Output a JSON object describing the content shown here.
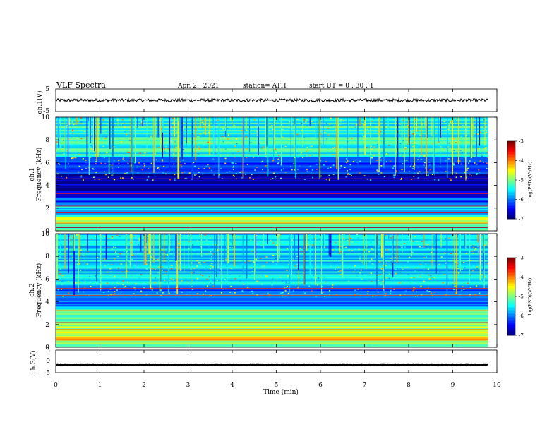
{
  "header": {
    "title": "VLF  Spectra",
    "date": "Apr. 2  , 2021",
    "station": "station= ATH",
    "start": "start  UT  =    0  : 30 : 1"
  },
  "chart_data": [
    {
      "type": "line",
      "id": "ch1-waveform",
      "ylabel": "ch.1(V)",
      "ylim": [
        -5,
        5
      ],
      "yticks": [
        "5",
        "-5"
      ],
      "xlim": [
        0,
        10
      ],
      "series": [
        {
          "baseline": 0,
          "amplitude": 0.7,
          "color": "#000000"
        }
      ]
    },
    {
      "type": "heatmap",
      "id": "ch1-spectrogram",
      "ylabel_line1": "ch.1",
      "ylabel_line2": "Frequency  (kHz)",
      "ylim": [
        0,
        10
      ],
      "yticks": [
        "0",
        "2",
        "4",
        "6",
        "8",
        "10"
      ],
      "xlim": [
        0,
        9.8
      ],
      "bands": [
        {
          "from": 0.0,
          "to": 0.4,
          "level": -5.4
        },
        {
          "from": 0.4,
          "to": 1.2,
          "level": -4.8
        },
        {
          "from": 1.2,
          "to": 2.4,
          "level": -5.6
        },
        {
          "from": 2.4,
          "to": 3.0,
          "level": -6.2
        },
        {
          "from": 3.0,
          "to": 5.0,
          "level": -6.8
        },
        {
          "from": 5.0,
          "to": 6.5,
          "level": -6.1
        },
        {
          "from": 6.5,
          "to": 10.0,
          "level": -5.4
        }
      ],
      "colorbar": {
        "label": "log(PSD)(V²/Hz)",
        "range": [
          -7,
          -3
        ],
        "ticks": [
          "-3",
          "-4",
          "-5",
          "-6",
          "-7"
        ]
      }
    },
    {
      "type": "heatmap",
      "id": "ch2-spectrogram",
      "ylabel_line1": "ch.2",
      "ylabel_line2": "Frequency  (kHz)",
      "ylim": [
        0,
        10
      ],
      "yticks": [
        "0",
        "2",
        "4",
        "6",
        "8",
        "10"
      ],
      "xlim": [
        0,
        9.8
      ],
      "bands": [
        {
          "from": 0.0,
          "to": 0.6,
          "level": -5.2
        },
        {
          "from": 0.6,
          "to": 1.0,
          "level": -4.2
        },
        {
          "from": 1.0,
          "to": 2.2,
          "level": -4.8
        },
        {
          "from": 2.2,
          "to": 3.6,
          "level": -5.3
        },
        {
          "from": 3.6,
          "to": 5.2,
          "level": -6.1
        },
        {
          "from": 5.2,
          "to": 10.0,
          "level": -5.6
        }
      ],
      "colorbar": {
        "label": "log(PSD)(V²/Hz)",
        "range": [
          -7,
          -3
        ],
        "ticks": [
          "-3",
          "-4",
          "-5",
          "-6",
          "-7"
        ]
      }
    },
    {
      "type": "line",
      "id": "ch3-waveform",
      "ylabel": "ch.3(V)",
      "ylim": [
        -5,
        5
      ],
      "yticks": [
        "5",
        "0",
        "-5"
      ],
      "xlim": [
        0,
        10
      ],
      "series": [
        {
          "baseline": -1.5,
          "amplitude": 0.15,
          "color": "#000000"
        }
      ]
    }
  ],
  "xaxis": {
    "label": "Time  (min)",
    "ticks": [
      "0",
      "1",
      "2",
      "3",
      "4",
      "5",
      "6",
      "7",
      "8",
      "9",
      "10"
    ]
  }
}
